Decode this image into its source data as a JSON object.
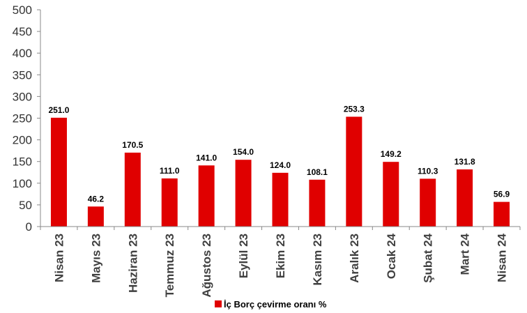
{
  "chart_data": {
    "type": "bar",
    "categories": [
      "Nisan 23",
      "Mayıs 23",
      "Haziran 23",
      "Temmuz 23",
      "Ağustos 23",
      "Eylül 23",
      "Ekim 23",
      "Kasım 23",
      "Aralık 23",
      "Ocak 24",
      "Şubat 24",
      "Mart 24",
      "Nisan 24"
    ],
    "series": [
      {
        "name": "İç Borç çevirme oranı %",
        "values": [
          251.0,
          46.2,
          170.5,
          111.0,
          141.0,
          154.0,
          124.0,
          108.1,
          253.3,
          149.2,
          110.3,
          131.8,
          56.9
        ],
        "labels": [
          "251.0",
          "46.2",
          "170.5",
          "111.0",
          "141.0",
          "154.0",
          "124.0",
          "108.1",
          "253.3",
          "149.2",
          "110.3",
          "131.8",
          "56.9"
        ]
      }
    ],
    "yticks": [
      "0",
      "50",
      "100",
      "150",
      "200",
      "250",
      "300",
      "350",
      "400",
      "450",
      "500"
    ],
    "ylim": [
      0,
      500
    ],
    "grid": false,
    "legend_position": "bottom",
    "bar_color": "#e00000"
  }
}
